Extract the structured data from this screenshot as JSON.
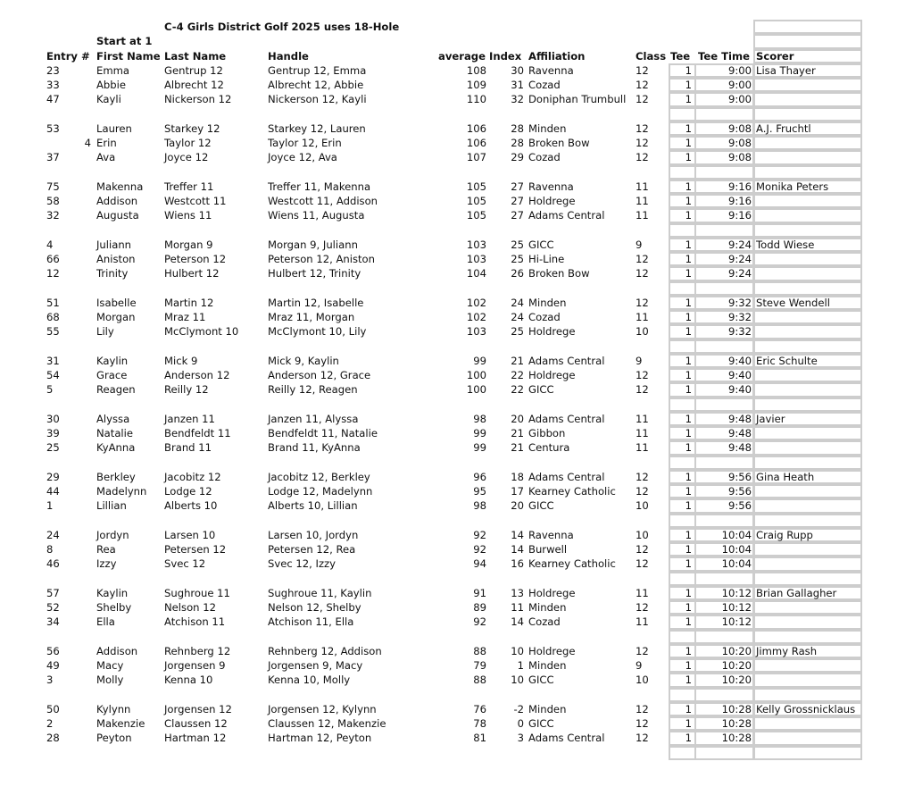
{
  "title": "C-4 Girls District Golf 2025 uses 18-Hole",
  "start_label": "Start at 1",
  "headers": {
    "entry": "Entry #",
    "first": "First Name",
    "last": "Last Name",
    "handle": "Handle",
    "average": "average",
    "index": "Index",
    "affiliation": "Affiliation",
    "class": "Class",
    "tee": "Tee",
    "tee_time": "Tee Time",
    "scorer": "Scorer"
  },
  "groups": [
    {
      "time": "9:00",
      "scorer": "Lisa Thayer",
      "players": [
        {
          "entry": "23",
          "first": "Emma",
          "last": "Gentrup 12",
          "handle": "Gentrup 12, Emma",
          "average": "108",
          "index": "30",
          "affiliation": "Ravenna",
          "class": "12",
          "tee": "1"
        },
        {
          "entry": "33",
          "first": "Abbie",
          "last": "Albrecht 12",
          "handle": "Albrecht 12, Abbie",
          "average": "109",
          "index": "31",
          "affiliation": "Cozad",
          "class": "12",
          "tee": "1"
        },
        {
          "entry": "47",
          "first": "Kayli",
          "last": "Nickerson 12",
          "handle": "Nickerson 12, Kayli",
          "average": "110",
          "index": "32",
          "affiliation": "Doniphan Trumbull",
          "class": "12",
          "tee": "1"
        }
      ]
    },
    {
      "time": "9:08",
      "scorer": "A.J. Fruchtl",
      "players": [
        {
          "entry": "53",
          "first": "Lauren",
          "last": "Starkey 12",
          "handle": "Starkey 12, Lauren",
          "average": "106",
          "index": "28",
          "affiliation": "Minden",
          "class": "12",
          "tee": "1"
        },
        {
          "entry": "4",
          "entry_numeric": true,
          "first": "Erin",
          "last": "Taylor 12",
          "handle": "Taylor 12, Erin",
          "average": "106",
          "index": "28",
          "affiliation": "Broken Bow",
          "class": "12",
          "tee": "1"
        },
        {
          "entry": "37",
          "first": "Ava",
          "last": "Joyce 12",
          "handle": "Joyce 12, Ava",
          "average": "107",
          "index": "29",
          "affiliation": "Cozad",
          "class": "12",
          "tee": "1"
        }
      ]
    },
    {
      "time": "9:16",
      "scorer": "Monika Peters",
      "players": [
        {
          "entry": "75",
          "first": "Makenna",
          "last": "Treffer 11",
          "handle": "Treffer 11, Makenna",
          "average": "105",
          "index": "27",
          "affiliation": "Ravenna",
          "class": "11",
          "tee": "1"
        },
        {
          "entry": "58",
          "first": "Addison",
          "last": "Westcott 11",
          "handle": "Westcott 11, Addison",
          "average": "105",
          "index": "27",
          "affiliation": "Holdrege",
          "class": "11",
          "tee": "1"
        },
        {
          "entry": "32",
          "first": "Augusta",
          "last": "Wiens 11",
          "handle": "Wiens 11, Augusta",
          "average": "105",
          "index": "27",
          "affiliation": "Adams Central",
          "class": "11",
          "tee": "1"
        }
      ]
    },
    {
      "time": "9:24",
      "scorer": "Todd Wiese",
      "players": [
        {
          "entry": "4",
          "first": "Juliann",
          "last": "Morgan 9",
          "handle": "Morgan 9, Juliann",
          "average": "103",
          "index": "25",
          "affiliation": "GICC",
          "class": "9",
          "tee": "1"
        },
        {
          "entry": "66",
          "first": "Aniston",
          "last": "Peterson 12",
          "handle": "Peterson 12, Aniston",
          "average": "103",
          "index": "25",
          "affiliation": "Hi-Line",
          "class": "12",
          "tee": "1"
        },
        {
          "entry": "12",
          "first": "Trinity",
          "last": "Hulbert 12",
          "handle": "Hulbert 12, Trinity",
          "average": "104",
          "index": "26",
          "affiliation": "Broken Bow",
          "class": "12",
          "tee": "1"
        }
      ]
    },
    {
      "time": "9:32",
      "scorer": "Steve Wendell",
      "players": [
        {
          "entry": "51",
          "first": "Isabelle",
          "last": "Martin 12",
          "handle": "Martin 12, Isabelle",
          "average": "102",
          "index": "24",
          "affiliation": "Minden",
          "class": "12",
          "tee": "1"
        },
        {
          "entry": "68",
          "first": "Morgan",
          "last": "Mraz 11",
          "handle": "Mraz 11, Morgan",
          "average": "102",
          "index": "24",
          "affiliation": "Cozad",
          "class": "11",
          "tee": "1"
        },
        {
          "entry": "55",
          "first": "Lily",
          "last": "McClymont 10",
          "handle": "McClymont 10, Lily",
          "average": "103",
          "index": "25",
          "affiliation": "Holdrege",
          "class": "10",
          "tee": "1"
        }
      ]
    },
    {
      "time": "9:40",
      "scorer": "Eric Schulte",
      "players": [
        {
          "entry": "31",
          "first": "Kaylin",
          "last": "Mick 9",
          "handle": "Mick 9, Kaylin",
          "average": "99",
          "index": "21",
          "affiliation": "Adams Central",
          "class": "9",
          "tee": "1"
        },
        {
          "entry": "54",
          "first": "Grace",
          "last": "Anderson 12",
          "handle": "Anderson 12, Grace",
          "average": "100",
          "index": "22",
          "affiliation": "Holdrege",
          "class": "12",
          "tee": "1"
        },
        {
          "entry": "5",
          "first": "Reagen",
          "last": "Reilly 12",
          "handle": "Reilly 12, Reagen",
          "average": "100",
          "index": "22",
          "affiliation": "GICC",
          "class": "12",
          "tee": "1"
        }
      ]
    },
    {
      "time": "9:48",
      "scorer": "Javier",
      "players": [
        {
          "entry": "30",
          "first": "Alyssa",
          "last": "Janzen 11",
          "handle": "Janzen 11, Alyssa",
          "average": "98",
          "index": "20",
          "affiliation": "Adams Central",
          "class": "11",
          "tee": "1"
        },
        {
          "entry": "39",
          "first": "Natalie",
          "last": "Bendfeldt 11",
          "handle": "Bendfeldt 11, Natalie",
          "average": "99",
          "index": "21",
          "affiliation": "Gibbon",
          "class": "11",
          "tee": "1"
        },
        {
          "entry": "25",
          "first": "KyAnna",
          "last": "Brand 11",
          "handle": "Brand 11, KyAnna",
          "average": "99",
          "index": "21",
          "affiliation": "Centura",
          "class": "11",
          "tee": "1"
        }
      ]
    },
    {
      "time": "9:56",
      "scorer": "Gina Heath",
      "players": [
        {
          "entry": "29",
          "first": "Berkley",
          "last": "Jacobitz 12",
          "handle": "Jacobitz 12, Berkley",
          "average": "96",
          "index": "18",
          "affiliation": "Adams Central",
          "class": "12",
          "tee": "1"
        },
        {
          "entry": "44",
          "first": "Madelynn",
          "last": "Lodge 12",
          "handle": "Lodge 12, Madelynn",
          "average": "95",
          "index": "17",
          "affiliation": "Kearney Catholic",
          "class": "12",
          "tee": "1"
        },
        {
          "entry": "1",
          "first": "Lillian",
          "last": "Alberts 10",
          "handle": "Alberts 10, Lillian",
          "average": "98",
          "index": "20",
          "affiliation": "GICC",
          "class": "10",
          "tee": "1"
        }
      ]
    },
    {
      "time": "10:04",
      "scorer": "Craig Rupp",
      "players": [
        {
          "entry": "24",
          "first": "Jordyn",
          "last": "Larsen 10",
          "handle": "Larsen 10, Jordyn",
          "average": "92",
          "index": "14",
          "affiliation": "Ravenna",
          "class": "10",
          "tee": "1"
        },
        {
          "entry": "8",
          "first": "Rea",
          "last": "Petersen 12",
          "handle": "Petersen 12, Rea",
          "average": "92",
          "index": "14",
          "affiliation": "Burwell",
          "class": "12",
          "tee": "1"
        },
        {
          "entry": "46",
          "first": "Izzy",
          "last": "Svec 12",
          "handle": "Svec 12, Izzy",
          "average": "94",
          "index": "16",
          "affiliation": "Kearney Catholic",
          "class": "12",
          "tee": "1"
        }
      ]
    },
    {
      "time": "10:12",
      "scorer": "Brian Gallagher",
      "players": [
        {
          "entry": "57",
          "first": "Kaylin",
          "last": "Sughroue 11",
          "handle": "Sughroue 11, Kaylin",
          "average": "91",
          "index": "13",
          "affiliation": "Holdrege",
          "class": "11",
          "tee": "1"
        },
        {
          "entry": "52",
          "first": "Shelby",
          "last": "Nelson 12",
          "handle": "Nelson 12, Shelby",
          "average": "89",
          "index": "11",
          "affiliation": "Minden",
          "class": "12",
          "tee": "1"
        },
        {
          "entry": "34",
          "first": "Ella",
          "last": "Atchison 11",
          "handle": "Atchison 11, Ella",
          "average": "92",
          "index": "14",
          "affiliation": "Cozad",
          "class": "11",
          "tee": "1"
        }
      ]
    },
    {
      "time": "10:20",
      "scorer": "Jimmy Rash",
      "players": [
        {
          "entry": "56",
          "first": "Addison",
          "last": "Rehnberg 12",
          "handle": "Rehnberg 12, Addison",
          "average": "88",
          "index": "10",
          "affiliation": "Holdrege",
          "class": "12",
          "tee": "1"
        },
        {
          "entry": "49",
          "first": "Macy",
          "last": "Jorgensen 9",
          "handle": "Jorgensen 9, Macy",
          "average": "79",
          "index": "1",
          "affiliation": "Minden",
          "class": "9",
          "tee": "1"
        },
        {
          "entry": "3",
          "first": "Molly",
          "last": "Kenna 10",
          "handle": "Kenna 10, Molly",
          "average": "88",
          "index": "10",
          "affiliation": "GICC",
          "class": "10",
          "tee": "1"
        }
      ]
    },
    {
      "time": "10:28",
      "scorer": "Kelly Grossnicklaus",
      "players": [
        {
          "entry": "50",
          "first": "Kylynn",
          "last": "Jorgensen 12",
          "handle": "Jorgensen 12, Kylynn",
          "average": "76",
          "index": "-2",
          "affiliation": "Minden",
          "class": "12",
          "tee": "1"
        },
        {
          "entry": "2",
          "first": "Makenzie",
          "last": "Claussen 12",
          "handle": "Claussen 12, Makenzie",
          "average": "78",
          "index": "0",
          "affiliation": "GICC",
          "class": "12",
          "tee": "1"
        },
        {
          "entry": "28",
          "first": "Peyton",
          "last": "Hartman 12",
          "handle": "Hartman 12, Peyton",
          "average": "81",
          "index": "3",
          "affiliation": "Adams Central",
          "class": "12",
          "tee": "1"
        }
      ]
    }
  ]
}
